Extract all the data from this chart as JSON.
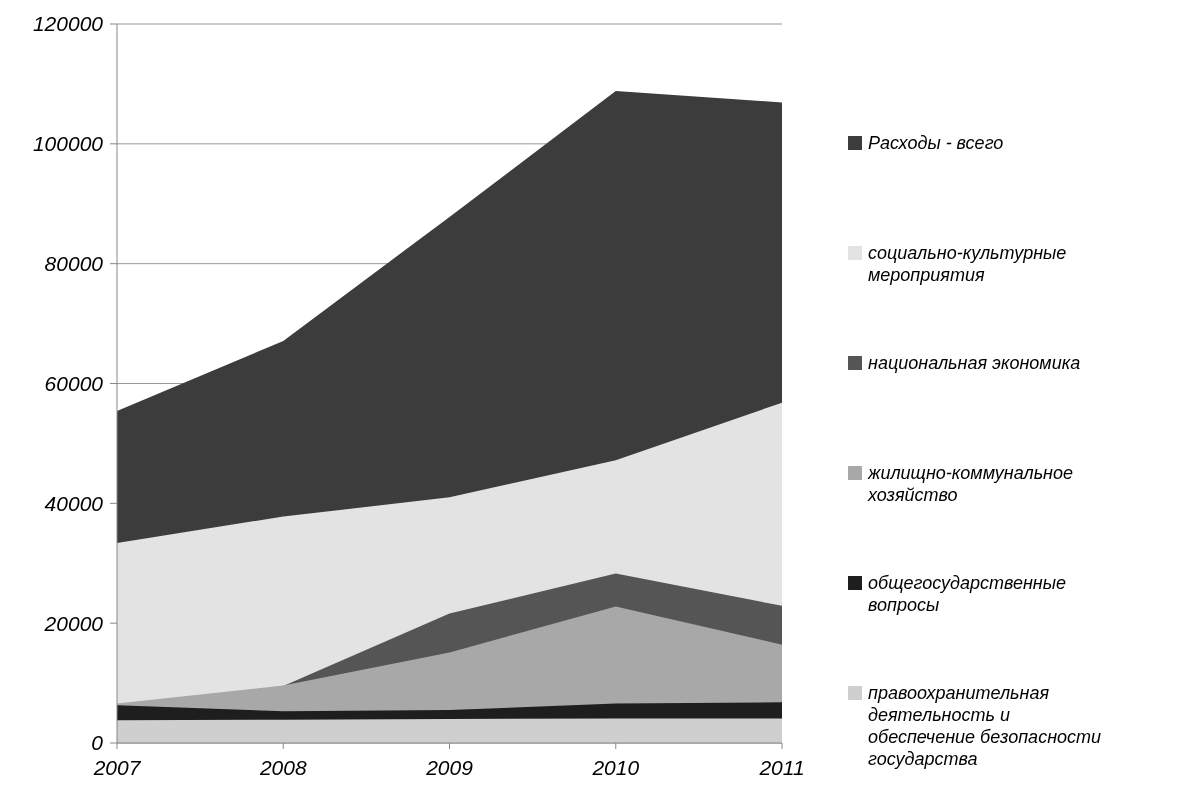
{
  "chart_data": {
    "type": "area",
    "categories": [
      "2007",
      "2008",
      "2009",
      "2010",
      "2011"
    ],
    "series": [
      {
        "name": "Расходы - всего",
        "color": "#3c3c3c",
        "values": [
          55400,
          67100,
          87800,
          108800,
          106900
        ]
      },
      {
        "name": "социально-культурные мероприятия",
        "color": "#e3e3e3",
        "values": [
          33400,
          37800,
          41000,
          47200,
          56800
        ]
      },
      {
        "name": "национальная экономика",
        "color": "#555555",
        "values": [
          6200,
          9500,
          21600,
          28300,
          22900
        ]
      },
      {
        "name": "жилищно-коммунальное хозяйство",
        "color": "#a8a8a8",
        "values": [
          6600,
          9600,
          15100,
          22800,
          16400
        ]
      },
      {
        "name": "общегосударственные вопросы",
        "color": "#1e1e1e",
        "values": [
          6300,
          5300,
          5500,
          6600,
          6800
        ]
      },
      {
        "name": "правоохранительная деятельность и обеспечение безопасности государства",
        "color": "#cfcfcf",
        "values": [
          3800,
          3900,
          4000,
          4100,
          4100
        ]
      }
    ],
    "ylim": [
      0,
      120000
    ],
    "yticks": [
      0,
      20000,
      40000,
      60000,
      80000,
      100000,
      120000
    ],
    "grid": "y",
    "legend": "right"
  }
}
